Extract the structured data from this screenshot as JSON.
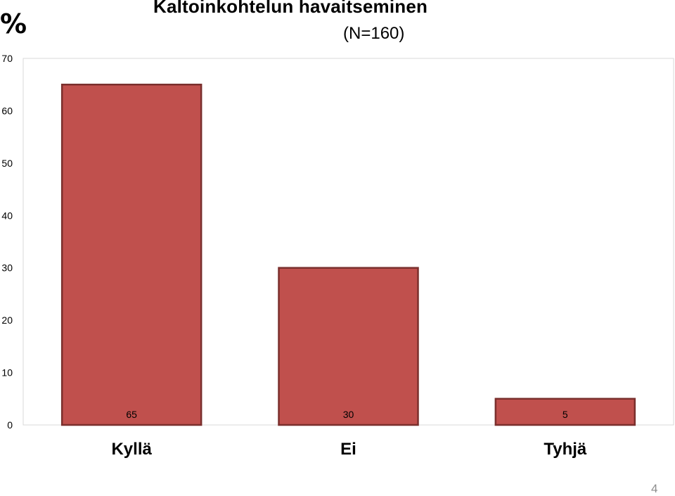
{
  "slide": {
    "page_number": "4"
  },
  "chart_data": {
    "type": "bar",
    "title": "Kaltoinkohtelun havaitseminen",
    "subtitle": "(N=160)",
    "unit_label": "%",
    "xlabel": "",
    "ylabel": "",
    "categories": [
      "Kyllä",
      "Ei",
      "Tyhjä"
    ],
    "values": [
      65,
      30,
      5
    ],
    "data_labels": [
      "65",
      "30",
      "5"
    ],
    "ylim": [
      0,
      70
    ],
    "yticks": [
      0,
      10,
      20,
      30,
      40,
      50,
      60,
      70
    ],
    "grid": false,
    "legend": "none",
    "colors": {
      "bar_fill": "#c0504d",
      "bar_stroke": "#7a2f2d",
      "plot_border": "#d9d9d9"
    }
  }
}
